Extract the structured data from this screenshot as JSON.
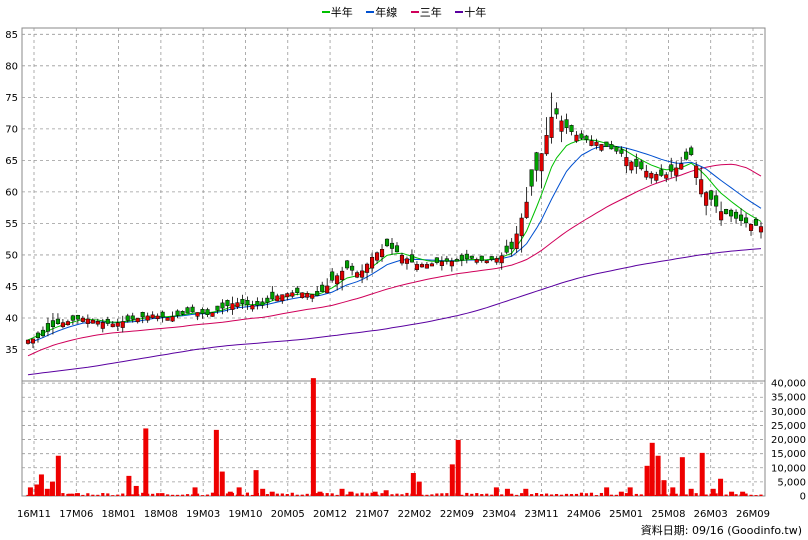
{
  "chart_data": {
    "type": "candlestick",
    "legend": [
      {
        "label": "半年",
        "color": "#00c000"
      },
      {
        "label": "年線",
        "color": "#0050d0"
      },
      {
        "label": "三年",
        "color": "#d0005a"
      },
      {
        "label": "十年",
        "color": "#5a00a0"
      }
    ],
    "price_axis": {
      "ylim": [
        30,
        86
      ],
      "ticks": [
        35,
        40,
        45,
        50,
        55,
        60,
        65,
        70,
        75,
        80,
        85
      ]
    },
    "volume_axis": {
      "ylim": [
        0,
        40000
      ],
      "ticks": [
        "0",
        "5,000",
        "10,000",
        "15,000",
        "20,000",
        "25,000",
        "30,000",
        "35,000",
        "40,000"
      ]
    },
    "x_ticks": [
      "16M11",
      "17M06",
      "18M01",
      "18M08",
      "19M03",
      "19M10",
      "20M05",
      "20M12",
      "21M07",
      "22M02",
      "22M09",
      "23M04",
      "23M11",
      "24M06",
      "25M01",
      "25M08",
      "26M03",
      "26M09"
    ],
    "close_anchors": [
      36.5,
      37,
      39,
      39.5,
      40,
      39.5,
      39,
      39.5,
      40,
      40.5,
      40,
      40.5,
      41,
      40.5,
      41.5,
      42.5,
      42,
      42,
      43.5,
      44,
      44,
      43.5,
      46,
      48,
      47,
      50,
      51.5,
      50,
      48.5,
      48.5,
      49,
      49,
      49.5,
      49,
      49.5,
      51,
      58,
      65,
      73,
      70,
      68.5,
      68,
      67,
      66,
      64,
      63,
      62.5,
      64,
      66,
      60,
      57,
      56,
      55,
      54.5
    ],
    "half_year_ma": [
      36.5,
      37.5,
      38.5,
      39.2,
      39.8,
      39.7,
      39.3,
      39.4,
      39.8,
      40.2,
      40.2,
      40.4,
      40.8,
      40.8,
      41.2,
      42,
      42.1,
      42.2,
      43,
      43.6,
      43.9,
      43.7,
      44.8,
      46.3,
      46.8,
      48.3,
      50,
      50.3,
      49.6,
      49,
      49,
      49,
      49.3,
      49.2,
      49.4,
      50.3,
      53.5,
      58.8,
      64.8,
      67.5,
      68.3,
      68.2,
      67.6,
      66.8,
      65.5,
      64.3,
      63.5,
      63.6,
      64.6,
      62.6,
      60,
      58.2,
      56.6,
      55.3
    ],
    "one_year_ma": [
      36,
      36.8,
      37.8,
      38.6,
      39.2,
      39.4,
      39.3,
      39.3,
      39.5,
      39.9,
      40.1,
      40.3,
      40.6,
      40.7,
      41,
      41.6,
      41.8,
      42,
      42.5,
      43,
      43.4,
      43.5,
      44.1,
      45.2,
      45.9,
      47.1,
      48.5,
      49.2,
      49.3,
      49.2,
      49.1,
      49.1,
      49.2,
      49.2,
      49.3,
      49.8,
      51.6,
      55,
      59.5,
      63.5,
      65.8,
      67,
      67.3,
      67.1,
      66.5,
      65.8,
      65,
      64.5,
      64.7,
      63.7,
      62,
      60.4,
      58.8,
      57.4
    ],
    "three_year_ma": [
      34,
      35,
      35.8,
      36.4,
      36.9,
      37.3,
      37.6,
      37.8,
      38,
      38.2,
      38.4,
      38.6,
      38.9,
      39.1,
      39.3,
      39.6,
      39.9,
      40.1,
      40.5,
      40.9,
      41.3,
      41.6,
      42,
      42.6,
      43.2,
      43.9,
      44.6,
      45.2,
      45.7,
      46.2,
      46.6,
      47,
      47.3,
      47.6,
      47.9,
      48.4,
      49.2,
      50.5,
      52.2,
      53.8,
      55.2,
      56.5,
      57.8,
      58.9,
      60,
      61,
      61.8,
      62.5,
      63.3,
      63.9,
      64.3,
      64.4,
      63.8,
      62.5
    ],
    "ten_year_ma": [
      31,
      31.3,
      31.6,
      31.9,
      32.2,
      32.6,
      33,
      33.4,
      33.8,
      34.2,
      34.6,
      35,
      35.3,
      35.6,
      35.8,
      36,
      36.2,
      36.4,
      36.6,
      36.9,
      37.2,
      37.5,
      37.8,
      38.1,
      38.5,
      38.9,
      39.3,
      39.8,
      40.3,
      40.9,
      41.6,
      42.4,
      43.2,
      44,
      44.8,
      45.6,
      46.3,
      46.9,
      47.4,
      47.9,
      48.4,
      48.8,
      49.2,
      49.6,
      50,
      50.3,
      50.6,
      50.8,
      51
    ],
    "volume_spikes": [
      {
        "x_frac": 0.006,
        "v": 3000
      },
      {
        "x_frac": 0.015,
        "v": 4000
      },
      {
        "x_frac": 0.021,
        "v": 7500
      },
      {
        "x_frac": 0.029,
        "v": 2500
      },
      {
        "x_frac": 0.036,
        "v": 5000
      },
      {
        "x_frac": 0.044,
        "v": 14000
      },
      {
        "x_frac": 0.06,
        "v": 800
      },
      {
        "x_frac": 0.07,
        "v": 1000
      },
      {
        "x_frac": 0.14,
        "v": 7000
      },
      {
        "x_frac": 0.15,
        "v": 3500
      },
      {
        "x_frac": 0.163,
        "v": 23500
      },
      {
        "x_frac": 0.185,
        "v": 1000
      },
      {
        "x_frac": 0.23,
        "v": 3000
      },
      {
        "x_frac": 0.259,
        "v": 23000
      },
      {
        "x_frac": 0.267,
        "v": 8500
      },
      {
        "x_frac": 0.278,
        "v": 1500
      },
      {
        "x_frac": 0.29,
        "v": 3000
      },
      {
        "x_frac": 0.313,
        "v": 9000
      },
      {
        "x_frac": 0.322,
        "v": 2500
      },
      {
        "x_frac": 0.335,
        "v": 1500
      },
      {
        "x_frac": 0.391,
        "v": 41000
      },
      {
        "x_frac": 0.4,
        "v": 1500
      },
      {
        "x_frac": 0.43,
        "v": 2500
      },
      {
        "x_frac": 0.442,
        "v": 1500
      },
      {
        "x_frac": 0.475,
        "v": 1500
      },
      {
        "x_frac": 0.49,
        "v": 2000
      },
      {
        "x_frac": 0.527,
        "v": 8000
      },
      {
        "x_frac": 0.535,
        "v": 5000
      },
      {
        "x_frac": 0.58,
        "v": 11000
      },
      {
        "x_frac": 0.588,
        "v": 19500
      },
      {
        "x_frac": 0.64,
        "v": 3000
      },
      {
        "x_frac": 0.655,
        "v": 2500
      },
      {
        "x_frac": 0.68,
        "v": 2500
      },
      {
        "x_frac": 0.79,
        "v": 3000
      },
      {
        "x_frac": 0.81,
        "v": 1500
      },
      {
        "x_frac": 0.822,
        "v": 3000
      },
      {
        "x_frac": 0.845,
        "v": 10500
      },
      {
        "x_frac": 0.852,
        "v": 18500
      },
      {
        "x_frac": 0.86,
        "v": 14000
      },
      {
        "x_frac": 0.868,
        "v": 5500
      },
      {
        "x_frac": 0.88,
        "v": 3000
      },
      {
        "x_frac": 0.893,
        "v": 13500
      },
      {
        "x_frac": 0.905,
        "v": 2500
      },
      {
        "x_frac": 0.92,
        "v": 15000
      },
      {
        "x_frac": 0.935,
        "v": 2500
      },
      {
        "x_frac": 0.945,
        "v": 6000
      },
      {
        "x_frac": 0.96,
        "v": 1500
      },
      {
        "x_frac": 0.975,
        "v": 1500
      }
    ]
  },
  "credit": "資料日期: 09/16  (Goodinfo.tw)"
}
